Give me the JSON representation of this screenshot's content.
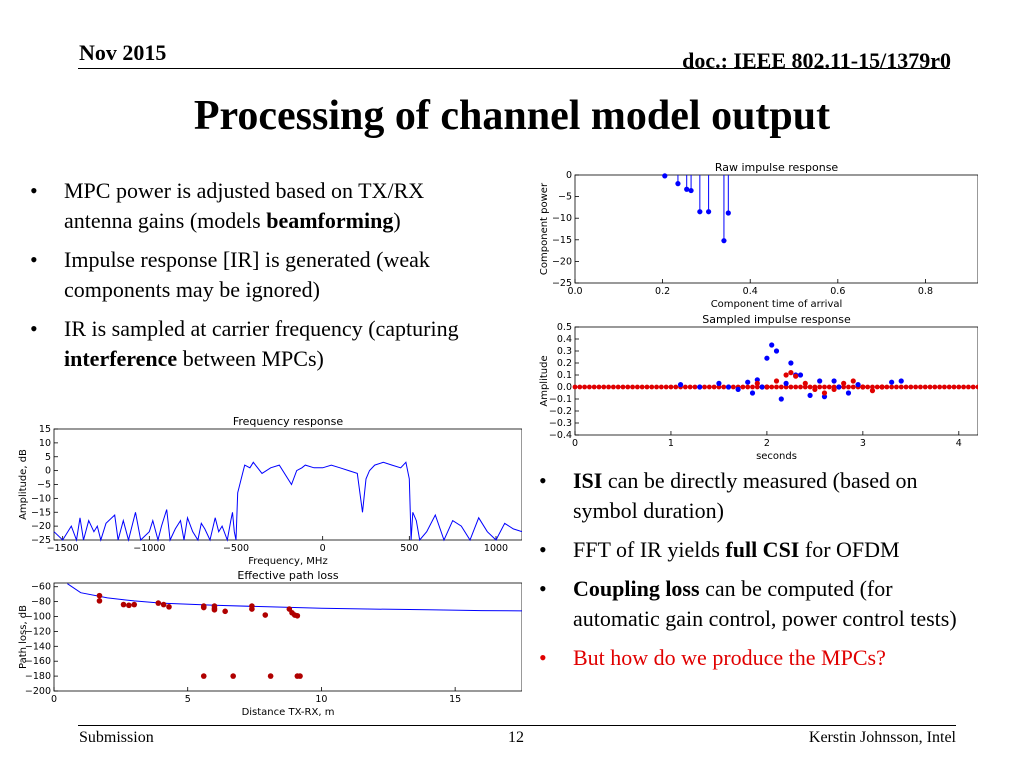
{
  "header": {
    "date": "Nov 2015",
    "doc": "doc.: IEEE 802.11-15/1379r0"
  },
  "title": "Processing of channel model output",
  "left_bullets": [
    [
      {
        "t": "MPC power is adjusted based on TX/RX antenna gains (models "
      },
      {
        "t": "beamforming",
        "b": true
      },
      {
        "t": ")"
      }
    ],
    [
      {
        "t": "Impulse response [IR] is generated (weak components may be ignored)"
      }
    ],
    [
      {
        "t": "IR is sampled at carrier frequency (capturing "
      },
      {
        "t": "interference",
        "b": true
      },
      {
        "t": " between MPCs)"
      }
    ]
  ],
  "right_bullets": [
    [
      {
        "t": "ISI",
        "b": true
      },
      {
        "t": " can be directly measured (based on symbol duration)"
      }
    ],
    [
      {
        "t": "FFT of IR yields "
      },
      {
        "t": "full CSI",
        "b": true
      },
      {
        "t": " for OFDM"
      }
    ],
    [
      {
        "t": "Coupling loss",
        "b": true
      },
      {
        "t": " can be computed (for automatic gain control, power control tests)"
      }
    ],
    [
      {
        "t": "But how do we produce the MPCs?",
        "red": true
      }
    ]
  ],
  "footer": {
    "left": "Submission",
    "page": "12",
    "right": "Kerstin Johnsson, Intel"
  },
  "colors": {
    "blue": "#0000ff",
    "dark_red": "#b00000",
    "red": "#e00000"
  },
  "chart_data": [
    {
      "type": "stem",
      "title": "Raw impulse response",
      "xlabel": "Component time of arrival",
      "ylabel": "Component power",
      "xlim": [
        0,
        0.92
      ],
      "ylim": [
        -25,
        0
      ],
      "xticks": [
        0.0,
        0.2,
        0.4,
        0.6,
        0.8
      ],
      "xtick_labels": [
        "0.0",
        "0.2",
        "0.4",
        "0.6",
        "0.8"
      ],
      "yticks": [
        0,
        -5,
        -10,
        -15,
        -20,
        -25
      ],
      "ytick_labels": [
        "0",
        "−5",
        "−10",
        "−15",
        "−20",
        "−25"
      ],
      "x": [
        0.205,
        0.235,
        0.255,
        0.265,
        0.285,
        0.305,
        0.34,
        0.35
      ],
      "y": [
        -0.2,
        -2.0,
        -3.3,
        -3.6,
        -8.5,
        -8.5,
        -15.2,
        -8.8
      ]
    },
    {
      "type": "scatter",
      "title": "Sampled impulse response",
      "xlabel": "seconds",
      "ylabel": "Amplitude",
      "xlim": [
        0,
        4.2
      ],
      "ylim": [
        -0.4,
        0.5
      ],
      "xticks": [
        0,
        1,
        2,
        3,
        4
      ],
      "xtick_labels": [
        "0",
        "1",
        "2",
        "3",
        "4"
      ],
      "yticks": [
        0.5,
        0.4,
        0.3,
        0.2,
        0.1,
        0.0,
        -0.1,
        -0.2,
        -0.3,
        -0.4
      ],
      "ytick_labels": [
        "0.5",
        "0.4",
        "0.3",
        "0.2",
        "0.1",
        "0.0",
        "−0.1",
        "−0.2",
        "−0.3",
        "−0.4"
      ],
      "blue_points": [
        [
          1.1,
          0.02
        ],
        [
          1.3,
          0.0
        ],
        [
          1.5,
          0.03
        ],
        [
          1.6,
          0.0
        ],
        [
          1.7,
          -0.02
        ],
        [
          1.8,
          0.04
        ],
        [
          1.85,
          -0.05
        ],
        [
          1.9,
          0.06
        ],
        [
          1.95,
          0.0
        ],
        [
          2.0,
          0.24
        ],
        [
          2.05,
          0.35
        ],
        [
          2.1,
          0.3
        ],
        [
          2.15,
          -0.1
        ],
        [
          2.2,
          0.03
        ],
        [
          2.25,
          0.2
        ],
        [
          2.3,
          0.1
        ],
        [
          2.35,
          0.1
        ],
        [
          2.45,
          -0.07
        ],
        [
          2.55,
          0.05
        ],
        [
          2.6,
          -0.08
        ],
        [
          2.7,
          0.05
        ],
        [
          2.75,
          0.0
        ],
        [
          2.85,
          -0.05
        ],
        [
          2.95,
          0.02
        ],
        [
          3.3,
          0.04
        ],
        [
          3.4,
          0.05
        ]
      ],
      "red_points": [
        [
          2.2,
          0.1
        ],
        [
          2.25,
          0.12
        ],
        [
          2.3,
          0.09
        ],
        [
          2.4,
          0.03
        ],
        [
          2.5,
          -0.02
        ],
        [
          2.6,
          -0.05
        ],
        [
          2.7,
          -0.02
        ],
        [
          2.8,
          0.03
        ],
        [
          2.9,
          0.05
        ],
        [
          3.0,
          0.0
        ],
        [
          3.1,
          -0.03
        ],
        [
          3.2,
          0.0
        ],
        [
          1.9,
          0.03
        ],
        [
          2.0,
          0.0
        ],
        [
          2.1,
          0.05
        ]
      ]
    },
    {
      "type": "line",
      "title": "Frequency response",
      "xlabel": "Frequency, MHz",
      "ylabel": "Amplitude, dB",
      "xlim": [
        -1550,
        1150
      ],
      "ylim": [
        -25,
        15
      ],
      "xticks": [
        -1500,
        -1000,
        -500,
        0,
        500,
        1000
      ],
      "xtick_labels": [
        "−1500",
        "−1000",
        "−500",
        "0",
        "500",
        "1000"
      ],
      "yticks": [
        15,
        10,
        5,
        0,
        -5,
        -10,
        -15,
        -20,
        -25
      ],
      "ytick_labels": [
        "15",
        "10",
        "5",
        "0",
        "−5",
        "−10",
        "−15",
        "−20",
        "−25"
      ],
      "x": [
        -1550,
        -1500,
        -1450,
        -1420,
        -1400,
        -1380,
        -1350,
        -1320,
        -1300,
        -1280,
        -1250,
        -1200,
        -1180,
        -1150,
        -1120,
        -1100,
        -1080,
        -1050,
        -1000,
        -980,
        -950,
        -930,
        -900,
        -880,
        -850,
        -820,
        -800,
        -780,
        -750,
        -720,
        -700,
        -680,
        -650,
        -620,
        -600,
        -580,
        -550,
        -530,
        -520,
        -510,
        -500,
        -490,
        -470,
        -450,
        -420,
        -400,
        -350,
        -300,
        -250,
        -180,
        -150,
        -120,
        -100,
        -50,
        0,
        50,
        100,
        150,
        200,
        230,
        250,
        270,
        300,
        350,
        400,
        450,
        480,
        500,
        510,
        520,
        540,
        560,
        600,
        650,
        700,
        750,
        800,
        850,
        900,
        950,
        1000,
        1050,
        1100,
        1150
      ],
      "y": [
        -22,
        -25,
        -20,
        -25,
        -17,
        -25,
        -18,
        -22,
        -20,
        -25,
        -19,
        -16,
        -25,
        -18,
        -25,
        -20,
        -15,
        -25,
        -22,
        -18,
        -25,
        -20,
        -14,
        -25,
        -21,
        -18,
        -25,
        -17,
        -22,
        -25,
        -19,
        -21,
        -25,
        -17,
        -22,
        -20,
        -25,
        -18,
        -15,
        -22,
        -25,
        -8,
        -3,
        2,
        1,
        3,
        -1,
        1,
        2,
        -5,
        0,
        1,
        2,
        1,
        1,
        2,
        1,
        0,
        -1,
        -15,
        -3,
        0,
        2,
        3,
        2,
        1,
        3,
        -3,
        -25,
        -15,
        -18,
        -25,
        -22,
        -16,
        -25,
        -18,
        -20,
        -25,
        -17,
        -22,
        -25,
        -19,
        -21,
        -22
      ]
    },
    {
      "type": "scatter",
      "title": "Effective path loss",
      "xlabel": "Distance TX-RX, m",
      "ylabel": "Path loss, dB",
      "xlim": [
        0,
        17.5
      ],
      "ylim": [
        -200,
        -55
      ],
      "xticks": [
        0,
        5,
        10,
        15
      ],
      "xtick_labels": [
        "0",
        "5",
        "10",
        "15"
      ],
      "yticks": [
        -60,
        -80,
        -100,
        -120,
        -140,
        -160,
        -180,
        -200
      ],
      "ytick_labels": [
        "−60",
        "−80",
        "−100",
        "−120",
        "−140",
        "−160",
        "−180",
        "−200"
      ],
      "points": [
        [
          1.7,
          -72
        ],
        [
          1.7,
          -79
        ],
        [
          2.6,
          -84
        ],
        [
          2.8,
          -85
        ],
        [
          3.0,
          -84
        ],
        [
          3.9,
          -82
        ],
        [
          4.1,
          -84
        ],
        [
          4.3,
          -87
        ],
        [
          5.6,
          -86
        ],
        [
          5.6,
          -88
        ],
        [
          6.0,
          -86
        ],
        [
          6.0,
          -89
        ],
        [
          6.0,
          -91
        ],
        [
          6.4,
          -93
        ],
        [
          7.4,
          -86
        ],
        [
          7.4,
          -90
        ],
        [
          7.9,
          -98
        ],
        [
          8.8,
          -90
        ],
        [
          8.9,
          -95
        ],
        [
          9.0,
          -98
        ],
        [
          9.1,
          -99
        ],
        [
          5.6,
          -180
        ],
        [
          6.7,
          -180
        ],
        [
          8.1,
          -180
        ],
        [
          9.1,
          -180
        ],
        [
          9.2,
          -180
        ]
      ],
      "fit_x": [
        0.5,
        1,
        2,
        3,
        4,
        6,
        8,
        10,
        12,
        14,
        16,
        17.5
      ],
      "fit_y": [
        -56,
        -68,
        -75,
        -79,
        -82,
        -85,
        -87,
        -89,
        -90,
        -91,
        -92,
        -92.5
      ]
    }
  ]
}
